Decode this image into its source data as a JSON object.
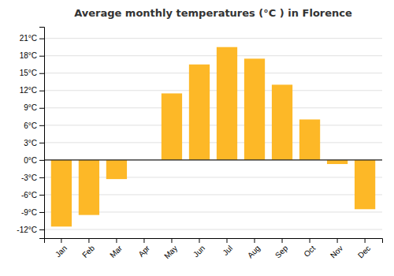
{
  "chart_data": {
    "type": "bar",
    "title": "Average monthly temperatures (°C ) in Florence",
    "categories": [
      "Jan",
      "Feb",
      "Mar",
      "Apr",
      "May",
      "Jun",
      "Jul",
      "Aug",
      "Sep",
      "Oct",
      "Nov",
      "Dec"
    ],
    "values": [
      -11.5,
      -9.5,
      -3.3,
      0.0,
      11.5,
      16.5,
      19.5,
      17.5,
      13.0,
      7.0,
      -0.7,
      -8.5
    ],
    "color": "#FDB827",
    "ylim": [
      -13.5,
      23
    ],
    "yticks": [
      {
        "value": -12,
        "label": "-12°C"
      },
      {
        "value": -9,
        "label": "-9°C"
      },
      {
        "value": -6,
        "label": "-6°C"
      },
      {
        "value": -3,
        "label": "-3°C"
      },
      {
        "value": 0,
        "label": "0°C"
      },
      {
        "value": 3,
        "label": "3°C"
      },
      {
        "value": 6,
        "label": "6°C"
      },
      {
        "value": 9,
        "label": "9°C"
      },
      {
        "value": 12,
        "label": "12°C"
      },
      {
        "value": 15,
        "label": "15°C"
      },
      {
        "value": 18,
        "label": "18°C"
      },
      {
        "value": 21,
        "label": "21°C"
      }
    ],
    "grid": true
  }
}
